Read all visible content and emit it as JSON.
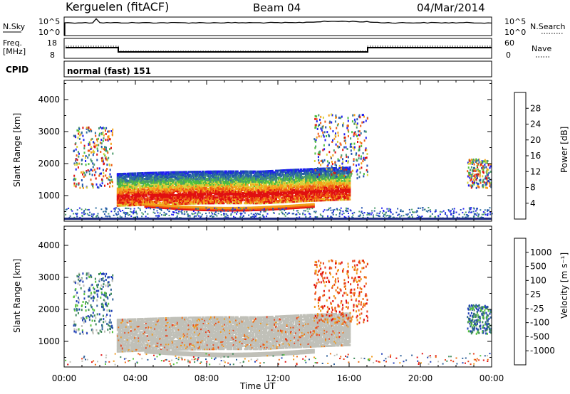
{
  "header": {
    "station": "Kerguelen (fitACF)",
    "beam": "Beam 04",
    "date": "04/Mar/2014"
  },
  "noise_panel": {
    "left_label": "N.Sky",
    "right_label": "N.Search",
    "y_ticks": [
      "10^5",
      "10^0"
    ]
  },
  "freq_panel": {
    "left_label_1": "Freq.",
    "left_label_2": "[MHz]",
    "left_ticks": [
      "18",
      "8"
    ],
    "right_label": "Nave",
    "right_ticks": [
      "60",
      "0"
    ]
  },
  "cpid": {
    "label": "CPID",
    "value": "normal (fast) 151"
  },
  "colors": {
    "power": [
      "#1e1ef0",
      "#1f4fb0",
      "#2f6fa0",
      "#4a9a6a",
      "#4fbf3f",
      "#d8d23a",
      "#f3a21b",
      "#ee5a12",
      "#e01010"
    ],
    "velocity": [
      "#1f3fb8",
      "#2d5f99",
      "#3f8a5a",
      "#55c23b",
      "#c0c0b8",
      "#f09a1c",
      "#ef6d12",
      "#e8401a",
      "#e01010"
    ]
  },
  "chart_data": [
    {
      "type": "heatmap",
      "name_panel": "power",
      "xlabel": "Time UT",
      "ylabel": "Slant Range [km]",
      "x_ticks": [
        "00:00",
        "04:00",
        "08:00",
        "12:00",
        "16:00",
        "20:00",
        "00:00"
      ],
      "xlim": [
        0,
        24
      ],
      "ylim": [
        200,
        4600
      ],
      "y_ticks": [
        1000,
        2000,
        3000,
        4000
      ],
      "colorbar_label": "Power [dB]",
      "colorbar_ticks": [
        "28",
        "24",
        "20",
        "16",
        "12",
        "8",
        "4"
      ],
      "colorbar_range": [
        0,
        30
      ]
    },
    {
      "type": "heatmap",
      "name_panel": "velocity",
      "xlabel": "Time UT",
      "ylabel": "Slant Range [km]",
      "x_ticks": [
        "00:00",
        "04:00",
        "08:00",
        "12:00",
        "16:00",
        "20:00",
        "00:00"
      ],
      "xlim": [
        0,
        24
      ],
      "ylim": [
        200,
        4600
      ],
      "y_ticks": [
        1000,
        2000,
        3000,
        4000
      ],
      "colorbar_label": "Velocity [m s⁻¹]",
      "colorbar_ticks": [
        "1000",
        "500",
        "100",
        "25",
        "-25",
        "-100",
        "-500",
        "-1000"
      ]
    }
  ]
}
